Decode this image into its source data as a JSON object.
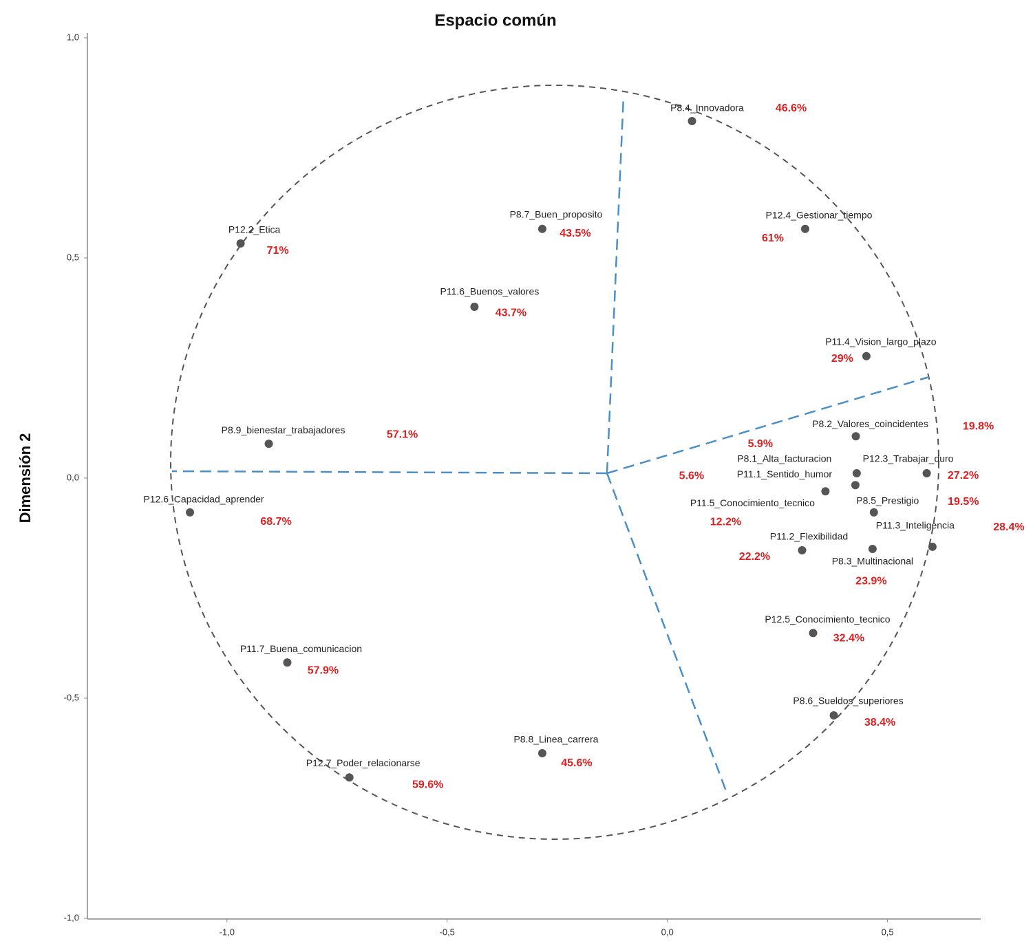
{
  "chart_data": {
    "type": "scatter",
    "title": "Espacio común",
    "y_label": "Dimensión 2",
    "labels": [
      "P8.4_Innovadora",
      "P12.2_Etica",
      "P8.7_Buen_proposito",
      "P12.4_Gestionar_tiempo",
      "P11.6_Buenos_valores",
      "P11.4_Vision_largo_plazo",
      "P8.9_bienestar_trabajadores",
      "P8.2_Valores_coincidentes",
      "P8.1_Alta_facturacion",
      "P11.1_Sentido_humor",
      "P12.3_Trabajar_duro",
      "P11.5_Conocimiento_tecnico",
      "P8.5_Prestigio",
      "P11.3_Inteligencia",
      "P11.2_Flexibilidad",
      "P8.3_Multinacional",
      "P12.5_Conocimiento_tecnico",
      "P8.6_Sueldos_superiores",
      "P12.6_Capacidad_aprender",
      "P11.7_Buena_comunicacion",
      "P12.7_Poder_relacionarse",
      "P8.8_Linea_carrera"
    ],
    "point_labels": [
      "46.6%",
      "71%",
      "43.5%",
      "61%",
      "43.7%",
      "29%",
      "57.1%",
      "19.8%",
      "5.9%",
      "5.6%",
      "27.2%",
      "12.2%",
      "19.5%",
      "28.4%",
      "22.2%",
      "23.9%",
      "32.4%",
      "38.4%",
      "68.7%",
      "57.9%",
      "59.6%",
      "45.6%"
    ],
    "x": [
      0.056,
      -0.969,
      -0.284,
      0.313,
      -0.438,
      0.452,
      -0.905,
      0.428,
      0.43,
      0.427,
      0.589,
      0.359,
      0.469,
      0.602,
      0.306,
      0.466,
      0.331,
      0.378,
      -1.084,
      -0.863,
      -0.722,
      -0.284
    ],
    "y": [
      0.811,
      0.533,
      0.566,
      0.566,
      0.389,
      0.277,
      0.078,
      0.095,
      0.011,
      -0.016,
      0.011,
      -0.03,
      -0.078,
      -0.156,
      -0.164,
      -0.161,
      -0.352,
      -0.539,
      -0.078,
      -0.419,
      -0.68,
      -0.625
    ],
    "color": "#555555",
    "label_color": "#e02020",
    "xlim": [
      -1.32,
      0.71
    ],
    "xticks": [
      {
        "value": -1.0,
        "label": "-1,0"
      },
      {
        "value": -0.5,
        "label": "-0,5"
      },
      {
        "value": 0.0,
        "label": "0,0"
      },
      {
        "value": 0.5,
        "label": "0,5"
      }
    ],
    "ylim": [
      -1.0,
      1.0
    ],
    "yticks": [
      {
        "value": -1.0,
        "label": "-1,0"
      },
      {
        "value": -0.5,
        "label": "-0,5"
      },
      {
        "value": 0.0,
        "label": "0,0"
      },
      {
        "value": 0.5,
        "label": "0,5"
      },
      {
        "value": 1.0,
        "label": "1,0"
      }
    ]
  }
}
